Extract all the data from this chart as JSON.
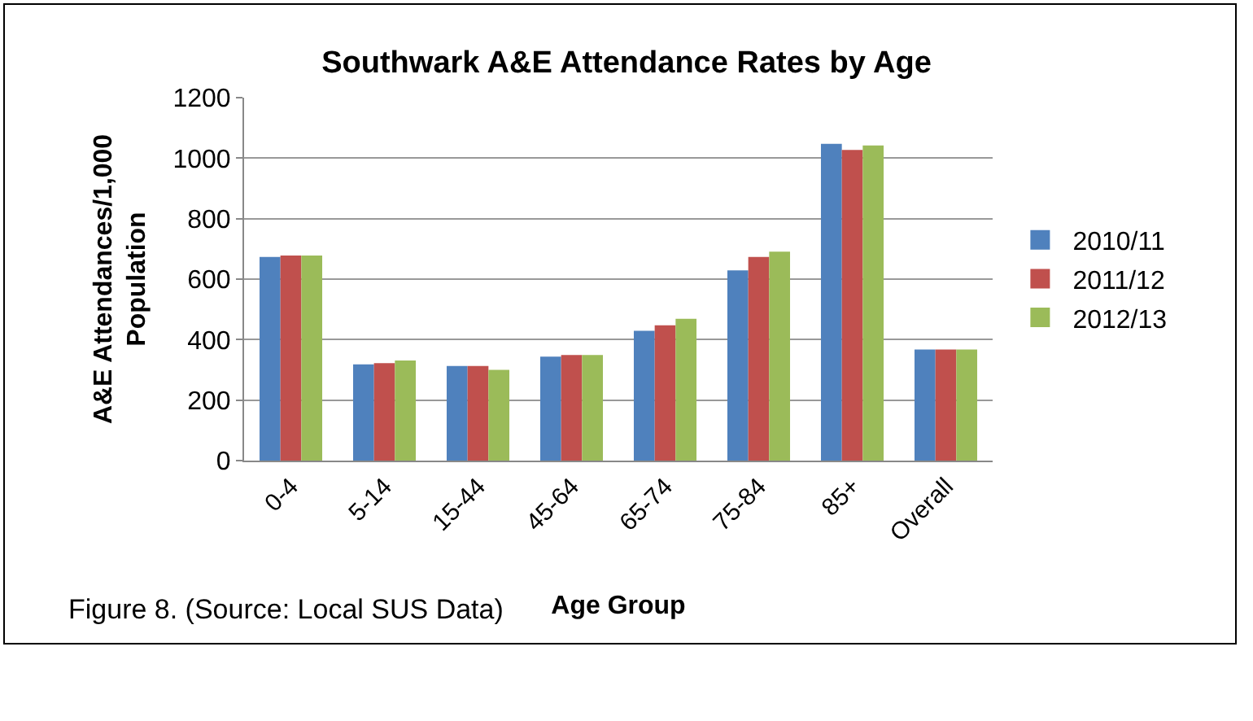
{
  "chart_data": {
    "type": "bar",
    "title": "Southwark A&E Attendance Rates by Age",
    "xlabel": "Age Group",
    "ylabel": "A&E Attendances/1,000 Population",
    "categories": [
      "0-4",
      "5-14",
      "15-44",
      "45-64",
      "65-74",
      "75-84",
      "85+",
      "Overall"
    ],
    "series": [
      {
        "name": "2010/11",
        "color": "#4f81bd",
        "values": [
          673,
          318,
          313,
          344,
          429,
          629,
          1047,
          367
        ]
      },
      {
        "name": "2011/12",
        "color": "#c0504d",
        "values": [
          678,
          322,
          313,
          349,
          447,
          673,
          1027,
          367
        ]
      },
      {
        "name": "2012/13",
        "color": "#9bbb59",
        "values": [
          678,
          331,
          300,
          349,
          469,
          691,
          1042,
          367
        ]
      }
    ],
    "ylim": [
      0,
      1200
    ],
    "yticks": [
      0,
      200,
      400,
      600,
      800,
      1000,
      1200
    ],
    "grid": "y",
    "legend": "right",
    "annotations": [
      "Figure 8. (Source: Local SUS Data)"
    ]
  }
}
